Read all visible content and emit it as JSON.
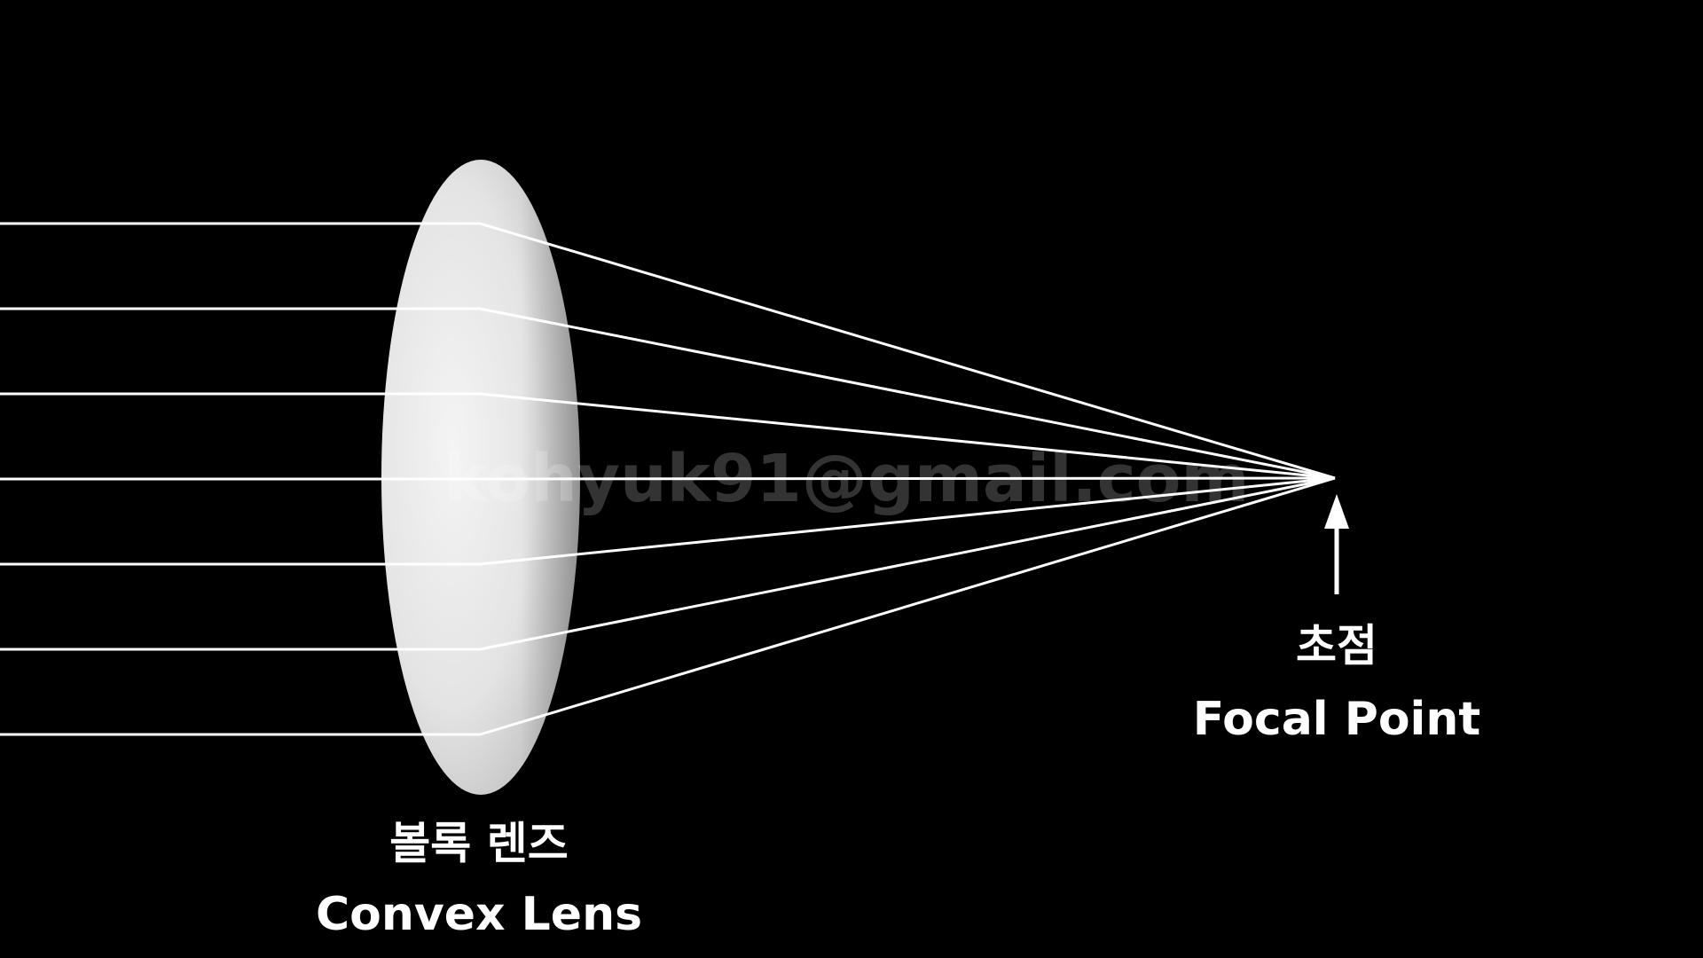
{
  "diagram": {
    "lens_label_ko": "볼록 렌즈",
    "lens_label_en": "Convex Lens",
    "focal_label_ko": "초점",
    "focal_label_en": "Focal Point",
    "watermark": "kohyuk91@gmail.com",
    "ray_count": 7,
    "colors": {
      "background": "#000000",
      "ray": "#ffffff",
      "lens_light": "#f2f2f2",
      "lens_shadow": "#9a9a9a",
      "label": "#ffffff"
    }
  }
}
